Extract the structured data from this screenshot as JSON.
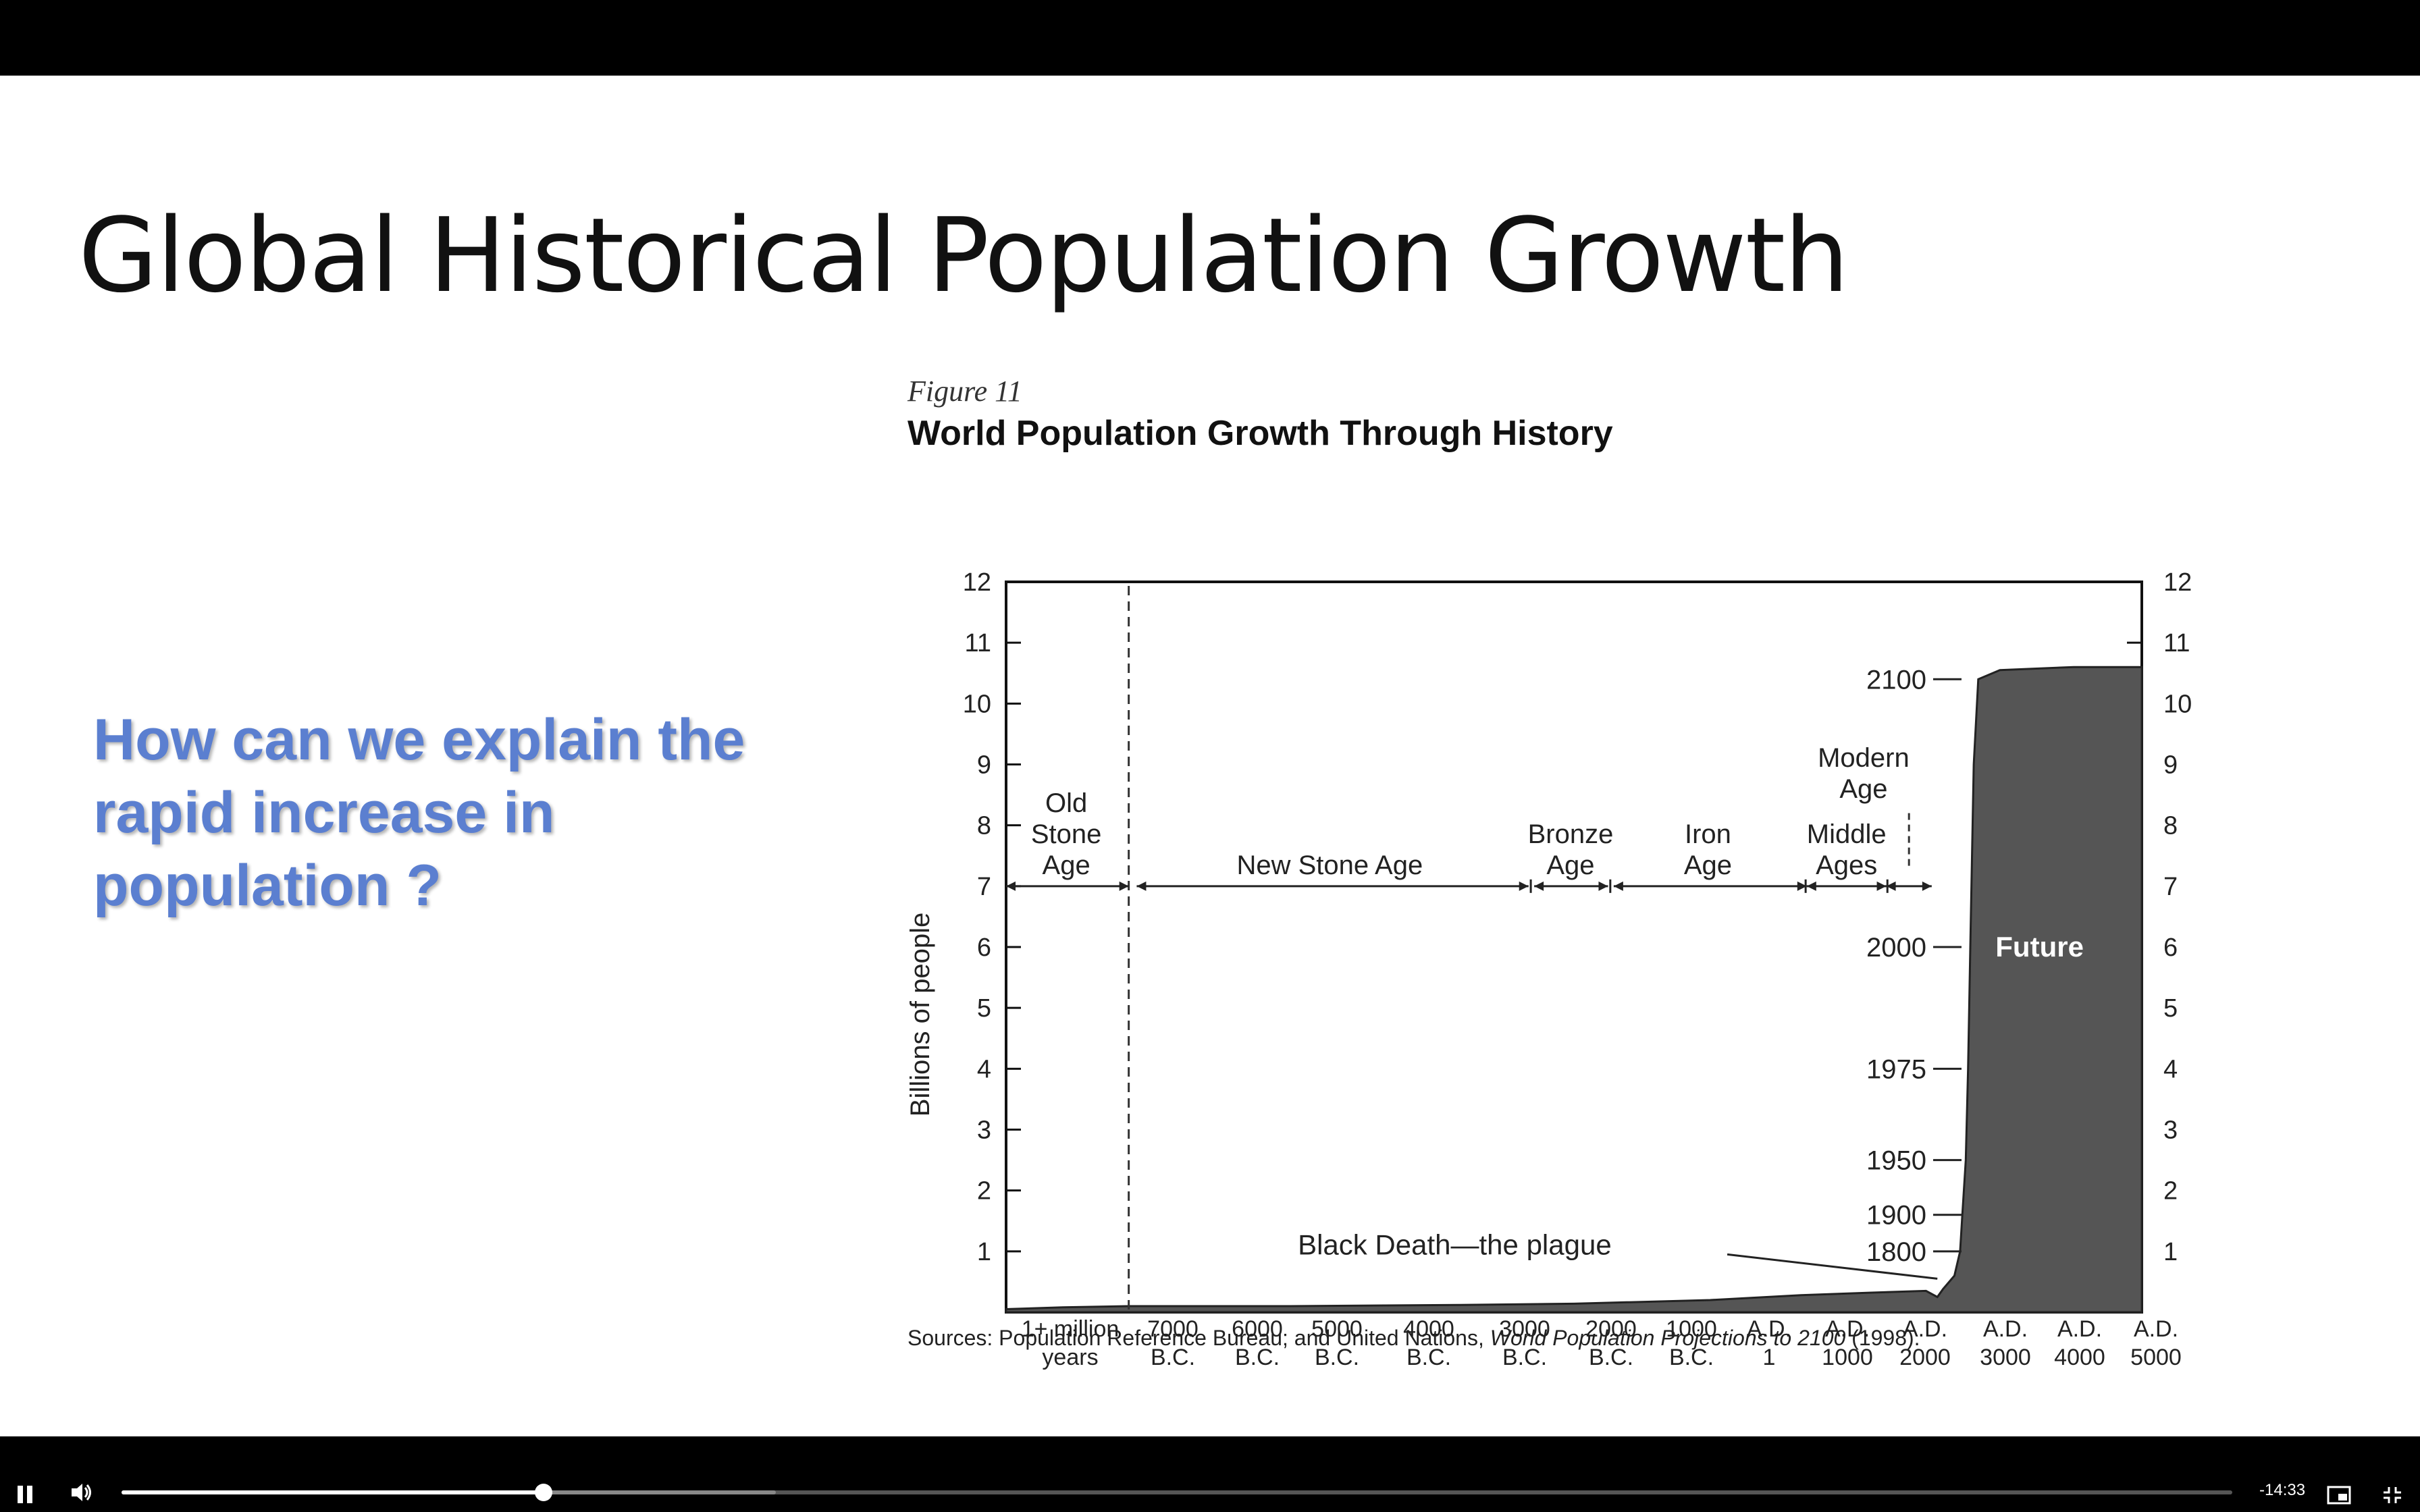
{
  "slide": {
    "title": "Global Historical Population Growth",
    "question": "How can we explain the rapid increase in population ?"
  },
  "figure": {
    "label": "Figure 11",
    "sources_prefix": "Sources: Population Reference Bureau; and United Nations, ",
    "sources_italic": "World Population Projections to 2100",
    "sources_suffix": " (1998)."
  },
  "chart_data": {
    "type": "area",
    "title": "World Population Growth Through History",
    "ylabel": "Billions of people",
    "xlabel": "",
    "ylim": [
      0,
      12
    ],
    "y_ticks": [
      1,
      2,
      3,
      4,
      5,
      6,
      7,
      8,
      9,
      10,
      11,
      12
    ],
    "grid": false,
    "x_tick_labels": [
      [
        "1+ million",
        "years"
      ],
      [
        "7000",
        "B.C."
      ],
      [
        "6000",
        "B.C."
      ],
      [
        "5000",
        "B.C."
      ],
      [
        "4000",
        "B.C."
      ],
      [
        "3000",
        "B.C."
      ],
      [
        "2000",
        "B.C."
      ],
      [
        "1000",
        "B.C."
      ],
      [
        "A.D.",
        "1"
      ],
      [
        "A.D.",
        "1000"
      ],
      [
        "A.D.",
        "2000"
      ],
      [
        "A.D.",
        "3000"
      ],
      [
        "A.D.",
        "4000"
      ],
      [
        "A.D.",
        "5000"
      ]
    ],
    "series": [
      {
        "values": [
          {
            "x": "1+ million years",
            "y": 0.05
          },
          {
            "x": "8000 B.C.",
            "y": 0.1
          },
          {
            "x": "7000 B.C.",
            "y": 0.1
          },
          {
            "x": "5000 B.C.",
            "y": 0.12
          },
          {
            "x": "3000 B.C.",
            "y": 0.15
          },
          {
            "x": "1000 B.C.",
            "y": 0.25
          },
          {
            "x": "A.D. 1",
            "y": 0.3
          },
          {
            "x": "A.D. 1000",
            "y": 0.35
          },
          {
            "x": "A.D. 1350",
            "y": 0.4
          },
          {
            "x": "A.D. 1800",
            "y": 1.0
          },
          {
            "x": "A.D. 1900",
            "y": 1.6
          },
          {
            "x": "A.D. 1950",
            "y": 2.5
          },
          {
            "x": "A.D. 1975",
            "y": 4.0
          },
          {
            "x": "A.D. 2000",
            "y": 6.0
          },
          {
            "x": "A.D. 2100",
            "y": 10.4
          },
          {
            "x": "A.D. 3000",
            "y": 10.6
          },
          {
            "x": "A.D. 5000",
            "y": 10.6
          }
        ]
      }
    ],
    "periods": [
      {
        "label_lines": [
          "Old",
          "Stone",
          "Age"
        ]
      },
      {
        "label_lines": [
          "New Stone Age"
        ]
      },
      {
        "label_lines": [
          "Bronze",
          "Age"
        ]
      },
      {
        "label_lines": [
          "Iron",
          "Age"
        ]
      },
      {
        "label_lines": [
          "Middle",
          "Ages"
        ]
      },
      {
        "label_lines": [
          "Modern",
          "Age"
        ]
      }
    ],
    "year_markers": [
      {
        "label": "2100",
        "y": 10.4
      },
      {
        "label": "2000",
        "y": 6.0
      },
      {
        "label": "1975",
        "y": 4.0
      },
      {
        "label": "1950",
        "y": 2.5
      },
      {
        "label": "1900",
        "y": 1.6
      },
      {
        "label": "1800",
        "y": 1.0
      }
    ],
    "annotations": [
      "Black Death—the plague",
      "Future"
    ]
  },
  "player": {
    "time_remaining": "-14:33",
    "progress": 0.2,
    "buffered": 0.31,
    "icons": [
      "pause-icon",
      "volume-icon",
      "picture-in-picture-icon",
      "exit-fullscreen-icon"
    ]
  }
}
